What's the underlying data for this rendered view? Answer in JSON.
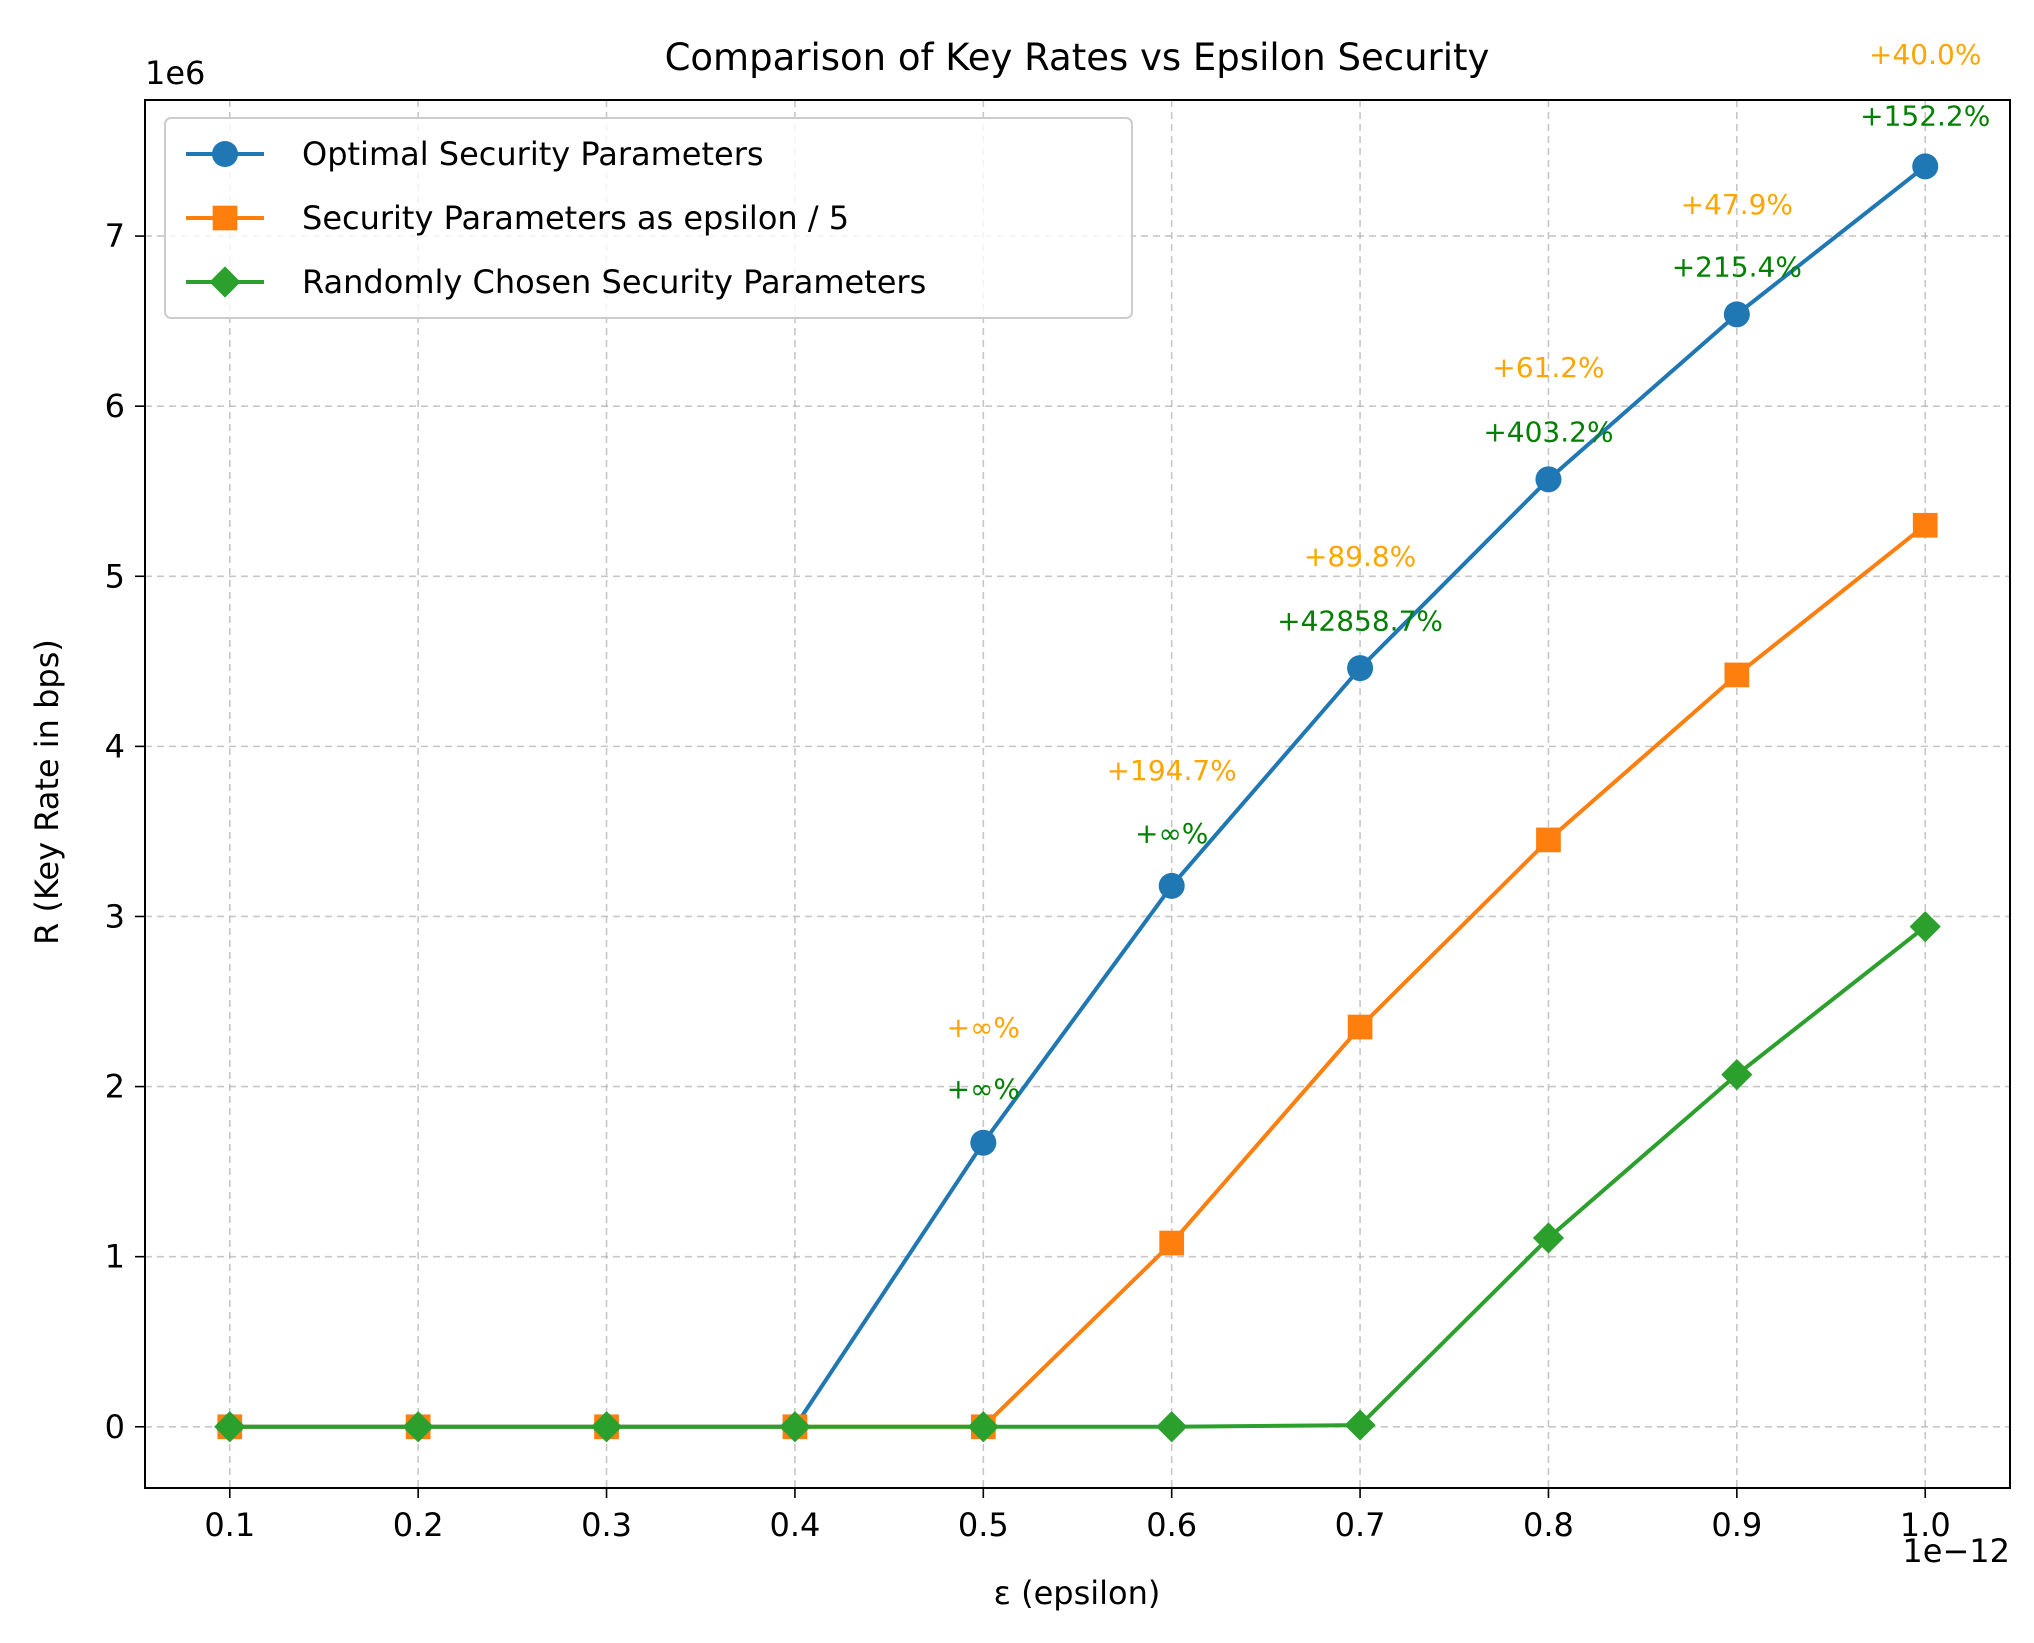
{
  "chart_data": {
    "type": "line",
    "title": "Comparison of Key Rates vs Epsilon Security",
    "xlabel": "ε (epsilon)",
    "ylabel": "R (Key Rate in bps)",
    "x_offset_label": "1e−12",
    "y_offset_label": "1e6",
    "x": [
      0.1,
      0.2,
      0.3,
      0.4,
      0.5,
      0.6,
      0.7,
      0.8,
      0.9,
      1.0
    ],
    "x_tick_labels": [
      "0.1",
      "0.2",
      "0.3",
      "0.4",
      "0.5",
      "0.6",
      "0.7",
      "0.8",
      "0.9",
      "1.0"
    ],
    "y_ticks": [
      0,
      1,
      2,
      3,
      4,
      5,
      6,
      7
    ],
    "y_tick_labels": [
      "0",
      "1",
      "2",
      "3",
      "4",
      "5",
      "6",
      "7"
    ],
    "xlim": [
      0.055,
      1.045
    ],
    "ylim": [
      -0.36,
      7.8
    ],
    "grid": true,
    "legend_position": "top-left",
    "series": [
      {
        "name": "Optimal Security Parameters",
        "color": "#1f77b4",
        "marker": "circle",
        "values": [
          0,
          0,
          0,
          0,
          1.67,
          3.18,
          4.46,
          5.57,
          6.54,
          7.41
        ]
      },
      {
        "name": "Security Parameters as epsilon / 5",
        "color": "#ff7f0e",
        "marker": "square",
        "values": [
          0,
          0,
          0,
          0,
          0,
          1.08,
          2.35,
          3.45,
          4.42,
          5.3
        ]
      },
      {
        "name": "Randomly Chosen Security Parameters",
        "color": "#2ca02c",
        "marker": "diamond",
        "values": [
          0,
          0,
          0,
          0,
          0,
          0,
          0.01,
          1.11,
          2.07,
          2.94
        ]
      }
    ],
    "annotations": [
      {
        "x": 0.5,
        "y": 2.35,
        "text": "+∞%",
        "color": "#ffa500"
      },
      {
        "x": 0.5,
        "y": 1.99,
        "text": "+∞%",
        "color": "#008000"
      },
      {
        "x": 0.6,
        "y": 3.86,
        "text": "+194.7%",
        "color": "#ffa500"
      },
      {
        "x": 0.6,
        "y": 3.49,
        "text": "+∞%",
        "color": "#008000"
      },
      {
        "x": 0.7,
        "y": 5.12,
        "text": "+89.8%",
        "color": "#ffa500"
      },
      {
        "x": 0.7,
        "y": 4.74,
        "text": "+42858.7%",
        "color": "#008000"
      },
      {
        "x": 0.8,
        "y": 6.23,
        "text": "+61.2%",
        "color": "#ffa500"
      },
      {
        "x": 0.8,
        "y": 5.85,
        "text": "+403.2%",
        "color": "#008000"
      },
      {
        "x": 0.9,
        "y": 7.19,
        "text": "+47.9%",
        "color": "#ffa500"
      },
      {
        "x": 0.9,
        "y": 6.82,
        "text": "+215.4%",
        "color": "#008000"
      },
      {
        "x": 1.0,
        "y": 8.07,
        "text": "+40.0%",
        "color": "#ffa500"
      },
      {
        "x": 1.0,
        "y": 7.71,
        "text": "+152.2%",
        "color": "#008000"
      }
    ]
  }
}
